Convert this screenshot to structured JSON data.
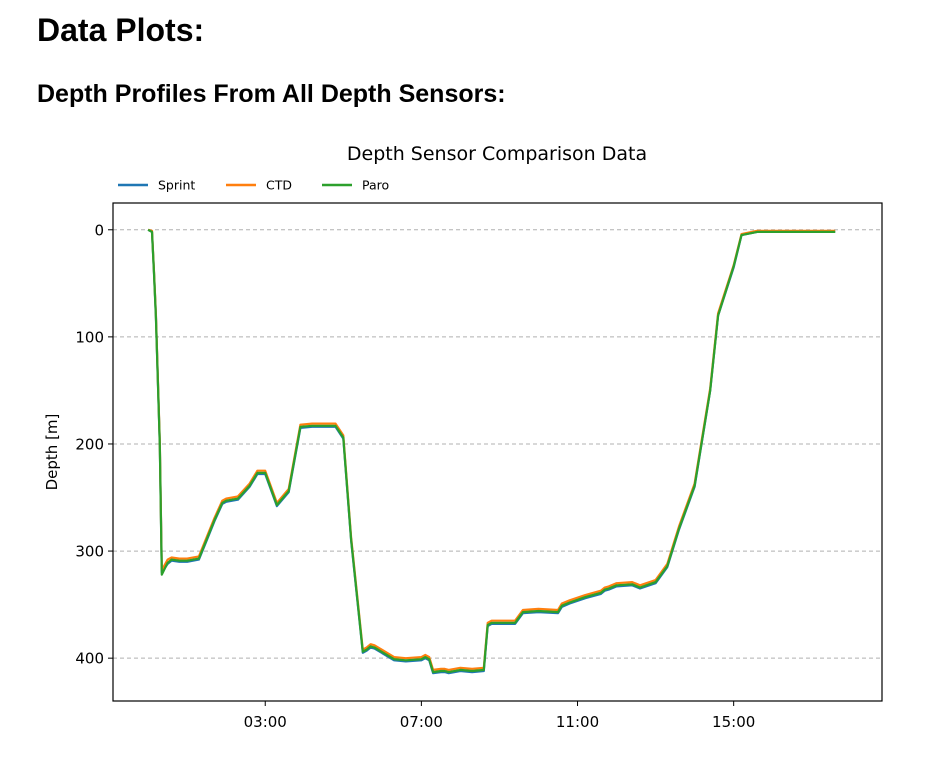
{
  "page": {
    "heading": "Data Plots:",
    "subheading": "Depth Profiles From All Depth Sensors:"
  },
  "chart_data": {
    "type": "line",
    "title": "Depth Sensor Comparison Data",
    "xlabel": "",
    "ylabel": "Depth [m]",
    "x_unit": "hours",
    "xlim": [
      -0.9,
      18.8
    ],
    "ylim": [
      440,
      -25
    ],
    "y_inverted": true,
    "x_ticks": [
      {
        "value": 3,
        "label": "03:00"
      },
      {
        "value": 7,
        "label": "07:00"
      },
      {
        "value": 11,
        "label": "11:00"
      },
      {
        "value": 15,
        "label": "15:00"
      }
    ],
    "y_ticks": [
      0,
      100,
      200,
      300,
      400
    ],
    "grid": {
      "y": true,
      "x": false,
      "style": "dashed"
    },
    "legend": {
      "placement": "top-left"
    },
    "x": [
      0.0,
      0.1,
      0.15,
      0.2,
      0.3,
      0.35,
      0.5,
      0.6,
      0.8,
      1.0,
      1.3,
      1.5,
      1.7,
      1.9,
      2.0,
      2.3,
      2.6,
      2.8,
      3.0,
      3.3,
      3.6,
      3.9,
      4.2,
      4.4,
      4.6,
      4.8,
      5.0,
      5.2,
      5.4,
      5.5,
      5.6,
      5.7,
      5.8,
      6.3,
      6.6,
      7.0,
      7.1,
      7.2,
      7.3,
      7.5,
      7.6,
      7.7,
      8.0,
      8.3,
      8.6,
      8.7,
      8.8,
      9.4,
      9.6,
      10.0,
      10.5,
      10.6,
      10.8,
      11.2,
      11.6,
      11.7,
      11.8,
      12.0,
      12.4,
      12.6,
      13.0,
      13.3,
      13.6,
      14.0,
      14.4,
      14.6,
      15.0,
      15.2,
      15.6,
      16.0,
      16.4,
      16.6,
      16.7,
      16.8,
      17.0,
      17.2,
      17.4,
      17.6
    ],
    "series": [
      {
        "name": "Sprint",
        "color": "#1f77b4",
        "values": [
          0,
          2,
          40,
          80,
          200,
          320,
          312,
          309,
          310,
          310,
          308,
          290,
          272,
          256,
          254,
          252,
          240,
          228,
          228,
          258,
          245,
          185,
          184,
          184,
          184,
          184,
          195,
          290,
          360,
          395,
          393,
          390,
          391,
          402,
          403,
          402,
          400,
          402,
          414,
          413,
          413,
          414,
          412,
          413,
          412,
          370,
          368,
          368,
          358,
          357,
          358,
          352,
          349,
          344,
          340,
          337,
          336,
          333,
          332,
          335,
          330,
          315,
          280,
          240,
          150,
          80,
          35,
          5,
          2,
          2,
          2,
          2,
          2,
          2,
          2,
          2,
          2,
          2
        ]
      },
      {
        "name": "CTD",
        "color": "#ff7f0e",
        "values": [
          0,
          1,
          39,
          79,
          198,
          318,
          308,
          306,
          307,
          307,
          305,
          287,
          269,
          253,
          251,
          249,
          237,
          225,
          225,
          255,
          242,
          182,
          181,
          181,
          181,
          181,
          192,
          287,
          357,
          392,
          390,
          387,
          388,
          399,
          400,
          399,
          397,
          399,
          411,
          410,
          410,
          411,
          409,
          410,
          409,
          367,
          365,
          365,
          355,
          354,
          355,
          349,
          346,
          341,
          337,
          334,
          333,
          330,
          329,
          332,
          327,
          312,
          277,
          237,
          148,
          78,
          33,
          4,
          1,
          1,
          1,
          1,
          1,
          1,
          1,
          1,
          1,
          1
        ]
      },
      {
        "name": "Paro",
        "color": "#2ca02c",
        "values": [
          0,
          2,
          41,
          82,
          201,
          322,
          311,
          308,
          309,
          309,
          307,
          289,
          271,
          255,
          253,
          251,
          239,
          227,
          227,
          257,
          244,
          184,
          183,
          183,
          183,
          183,
          194,
          289,
          359,
          394,
          392,
          389,
          390,
          401,
          402,
          401,
          399,
          401,
          413,
          412,
          412,
          413,
          411,
          412,
          411,
          369,
          367,
          367,
          357,
          356,
          357,
          351,
          348,
          343,
          339,
          336,
          335,
          332,
          331,
          334,
          329,
          314,
          279,
          239,
          150,
          80,
          34,
          5,
          2,
          2,
          2,
          2,
          2,
          2,
          2,
          2,
          2,
          2
        ]
      }
    ]
  }
}
